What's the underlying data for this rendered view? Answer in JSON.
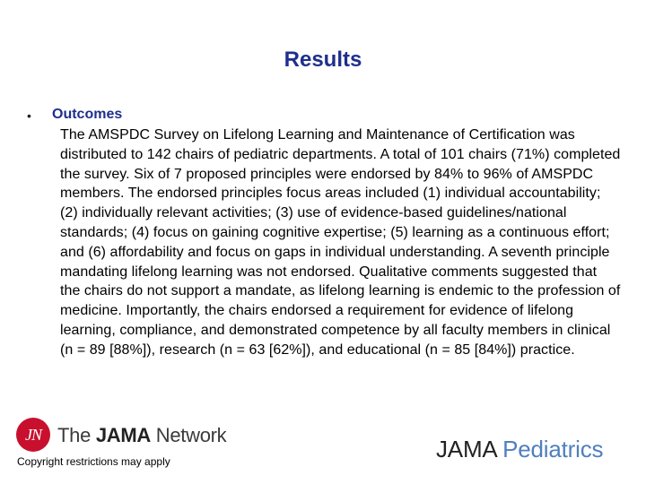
{
  "slide": {
    "title": "Results",
    "bullet_glyph": "•",
    "section_heading": "Outcomes",
    "body_text": "The AMSPDC Survey on Lifelong Learning and Maintenance of Certification was distributed to 142 chairs of pediatric departments. A total of 101 chairs (71%) completed the survey. Six of 7 proposed principles were endorsed by 84% to 96% of AMSPDC members. The endorsed principles focus areas included (1) individual accountability; (2) individually relevant activities; (3) use of evidence-based guidelines/national standards; (4) focus on gaining cognitive expertise; (5) learning as a continuous effort; and (6) affordability and focus on gaps in individual understanding. A seventh principle mandating lifelong learning was not endorsed. Qualitative comments suggested that the chairs do not support a mandate, as lifelong learning is endemic to the profession of medicine. Importantly, the chairs endorsed a requirement for evidence of lifelong learning, compliance, and demonstrated competence by all faculty members in clinical (n = 89 [88%]), research (n = 63 [62%]), and educational (n = 85 [84%]) practice."
  },
  "footer": {
    "logo_letters": "JN",
    "network_prefix": "The ",
    "network_bold": "JAMA",
    "network_suffix": " Network",
    "copyright": "Copyright restrictions may apply",
    "journal_part1": "JAMA",
    "journal_part2": " Pediatrics"
  },
  "colors": {
    "title": "#1f2f8c",
    "logo_red": "#c8102e",
    "pediatrics_blue": "#4f80bd"
  }
}
